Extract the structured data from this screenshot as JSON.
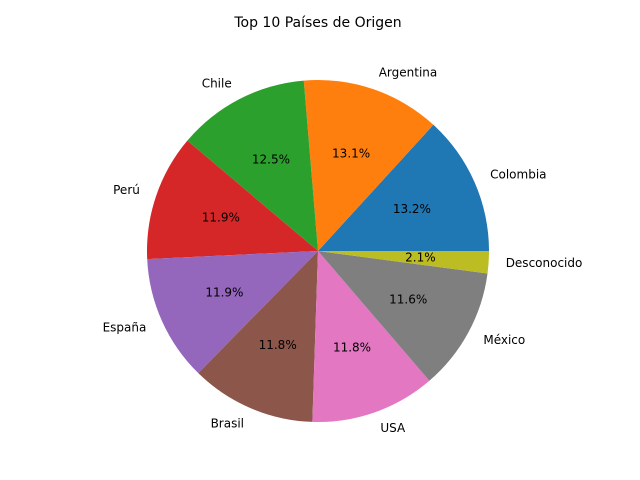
{
  "chart_data": {
    "type": "pie",
    "title": "Top 10 Países de Origen",
    "slices": [
      {
        "label": "Colombia",
        "value": 13.2,
        "pct_label": "13.2%",
        "color": "#1f77b4"
      },
      {
        "label": "Argentina",
        "value": 13.1,
        "pct_label": "13.1%",
        "color": "#ff7f0e"
      },
      {
        "label": "Chile",
        "value": 12.5,
        "pct_label": "12.5%",
        "color": "#2ca02c"
      },
      {
        "label": "Perú",
        "value": 11.9,
        "pct_label": "11.9%",
        "color": "#d62728"
      },
      {
        "label": "España",
        "value": 11.9,
        "pct_label": "11.9%",
        "color": "#9467bd"
      },
      {
        "label": "Brasil",
        "value": 11.8,
        "pct_label": "11.8%",
        "color": "#8c564b"
      },
      {
        "label": "USA",
        "value": 11.8,
        "pct_label": "11.8%",
        "color": "#e377c2"
      },
      {
        "label": "México",
        "value": 11.6,
        "pct_label": "11.6%",
        "color": "#7f7f7f"
      },
      {
        "label": "Desconocido",
        "value": 2.1,
        "pct_label": "2.1%",
        "color": "#bcbd22"
      }
    ],
    "start_angle_deg": 0,
    "direction": "counterclockwise"
  }
}
